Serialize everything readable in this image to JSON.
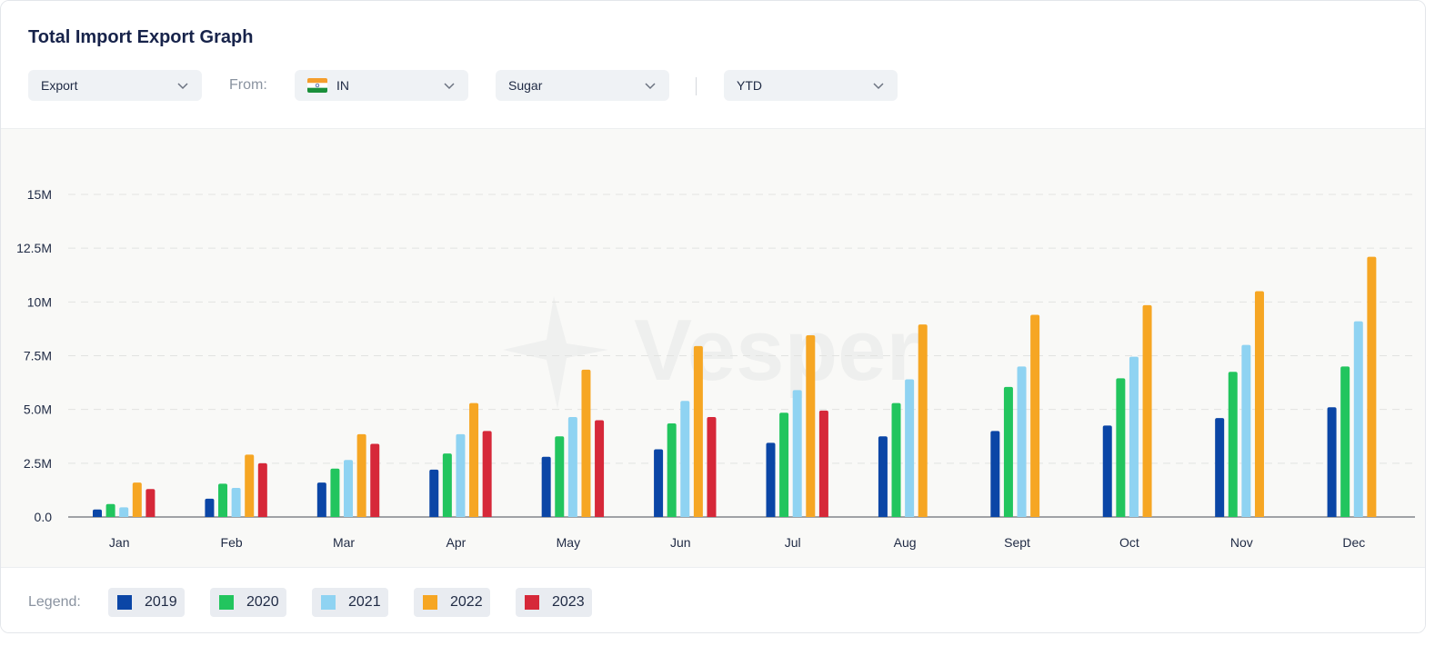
{
  "header": {
    "title": "Total Import Export Graph"
  },
  "controls": {
    "flow": {
      "value": "Export"
    },
    "from_label": "From:",
    "country": {
      "value": "IN",
      "flag": "india-flag-icon"
    },
    "commodity": {
      "value": "Sugar"
    },
    "period": {
      "value": "YTD"
    }
  },
  "watermark": {
    "text": "Vesper",
    "icon": "star-logo-icon"
  },
  "legend": {
    "label": "Legend:",
    "items": [
      {
        "label": "2019",
        "color": "#0b46a6"
      },
      {
        "label": "2020",
        "color": "#22c55e"
      },
      {
        "label": "2021",
        "color": "#8fd3f2"
      },
      {
        "label": "2022",
        "color": "#f6a623"
      },
      {
        "label": "2023",
        "color": "#d62839"
      }
    ]
  },
  "chart_data": {
    "type": "bar",
    "categories": [
      "Jan",
      "Feb",
      "Mar",
      "Apr",
      "May",
      "Jun",
      "Jul",
      "Aug",
      "Sept",
      "Oct",
      "Nov",
      "Dec"
    ],
    "y_ticks": [
      "0.0",
      "2.5M",
      "5.0M",
      "7.5M",
      "10M",
      "12.5M",
      "15M"
    ],
    "ylim": [
      0,
      15000000
    ],
    "grid": true,
    "legend_position": "bottom",
    "series": [
      {
        "name": "2019",
        "color": "#0b46a6",
        "values": [
          350000,
          850000,
          1600000,
          2200000,
          2800000,
          3150000,
          3450000,
          3750000,
          4000000,
          4250000,
          4600000,
          5100000
        ]
      },
      {
        "name": "2020",
        "color": "#22c55e",
        "values": [
          600000,
          1550000,
          2250000,
          2950000,
          3750000,
          4350000,
          4850000,
          5300000,
          6050000,
          6450000,
          6750000,
          7000000
        ]
      },
      {
        "name": "2021",
        "color": "#8fd3f2",
        "values": [
          450000,
          1350000,
          2650000,
          3850000,
          4650000,
          5400000,
          5900000,
          6400000,
          7000000,
          7450000,
          8000000,
          9100000
        ]
      },
      {
        "name": "2022",
        "color": "#f6a623",
        "values": [
          1600000,
          2900000,
          3850000,
          5300000,
          6850000,
          7950000,
          8450000,
          8950000,
          9400000,
          9850000,
          10500000,
          12100000
        ]
      },
      {
        "name": "2023",
        "color": "#d62839",
        "values": [
          1300000,
          2500000,
          3400000,
          4000000,
          4500000,
          4650000,
          4950000,
          null,
          null,
          null,
          null,
          null
        ]
      }
    ]
  }
}
